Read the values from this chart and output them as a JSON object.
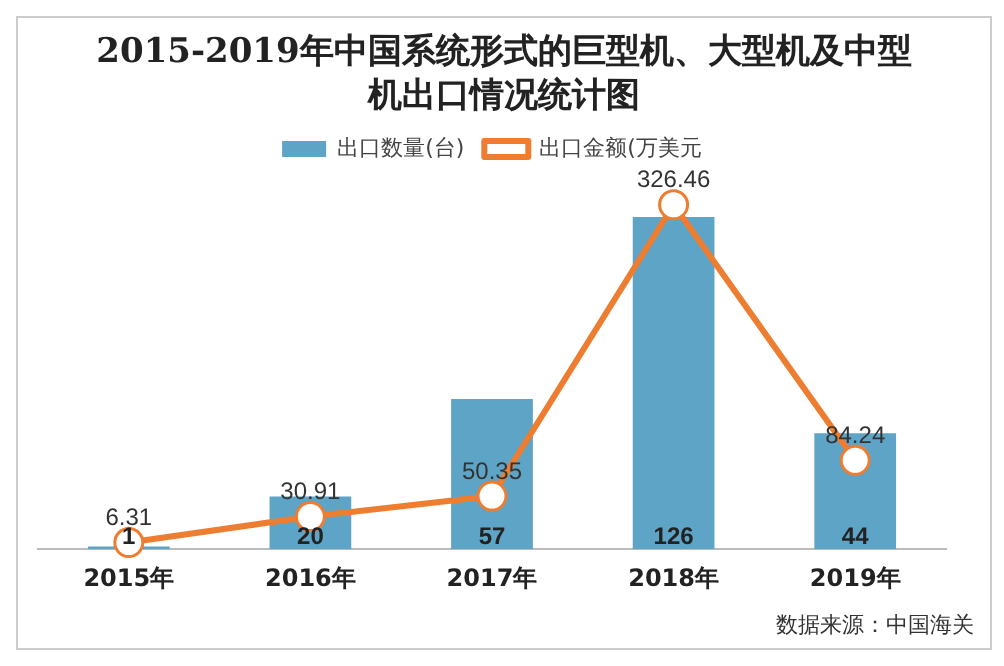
{
  "chart_data": {
    "type": "bar",
    "title": "2015-2019年中国系统形式的巨型机、大型机及中型机出口情况统计图",
    "categories": [
      "2015年",
      "2016年",
      "2017年",
      "2018年",
      "2019年"
    ],
    "series": [
      {
        "name": "出口数量(台)",
        "color": "#5ea4c6",
        "values": [
          1,
          20,
          57,
          126,
          44
        ]
      },
      {
        "name": "出口金额(万美元",
        "type": "line",
        "axis": "y2",
        "color": "#ed7d31",
        "values": [
          6.31,
          30.91,
          50.35,
          326.46,
          84.24
        ]
      }
    ],
    "data_labels": true,
    "legend": "top",
    "marker": "circle",
    "grid": false,
    "annotations": [
      "数据来源：中国海关"
    ]
  }
}
